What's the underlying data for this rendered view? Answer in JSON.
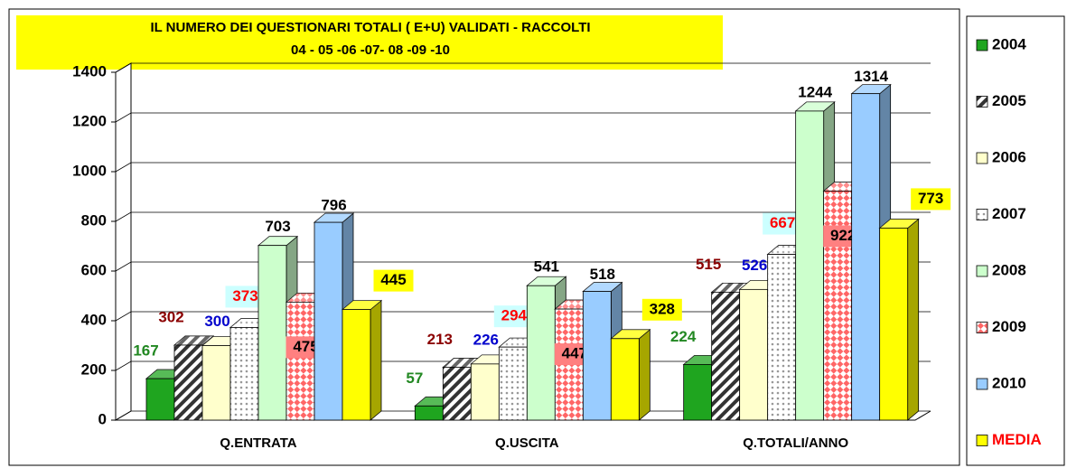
{
  "chart_data": {
    "type": "bar3d",
    "title": "IL NUMERO DEI QUESTIONARI  TOTALI  ( E+U) VALIDATI  - RACCOLTI",
    "subtitle": "04 - 05 -06 -07- 08 -09 -10",
    "categories": [
      "Q.ENTRATA",
      "Q.USCITA",
      "Q.TOTALI/ANNO"
    ],
    "ylim": [
      0,
      1400
    ],
    "yticks": [
      0,
      200,
      400,
      600,
      800,
      1000,
      1200,
      1400
    ],
    "grid": true,
    "legend": "right",
    "series": [
      {
        "name": "2004",
        "color": "#1fa51f",
        "label_color": "#228822",
        "values": [
          167,
          57,
          224
        ]
      },
      {
        "name": "2005",
        "color": "#333333",
        "pattern": "hatch",
        "label_color": "#8b0000",
        "values": [
          302,
          213,
          515
        ]
      },
      {
        "name": "2006",
        "color": "#ffffcc",
        "label_color": "#0000cc",
        "values": [
          300,
          226,
          526
        ]
      },
      {
        "name": "2007",
        "color": "#999999",
        "pattern": "dots",
        "label_color": "#ff0000",
        "label_bg": "#ccffff",
        "values": [
          373,
          294,
          667
        ]
      },
      {
        "name": "2008",
        "color": "#ccffcc",
        "label_color": "#000000",
        "values": [
          703,
          541,
          1244
        ]
      },
      {
        "name": "2009",
        "color": "#ff6666",
        "pattern": "checker",
        "label_color": "#000000",
        "label_bg": "#ff8080",
        "values": [
          475,
          447,
          922
        ]
      },
      {
        "name": "2010",
        "color": "#99ccff",
        "label_color": "#000000",
        "values": [
          796,
          518,
          1314
        ]
      },
      {
        "name": "MEDIA",
        "color": "#ffff00",
        "label_color": "#000000",
        "label_bg": "#ffff00",
        "legend_text_color": "#ff0000",
        "values": [
          445,
          328,
          773
        ]
      }
    ]
  }
}
